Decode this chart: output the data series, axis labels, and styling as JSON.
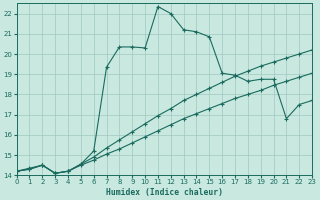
{
  "xlabel": "Humidex (Indice chaleur)",
  "bg_color": "#c8e8e0",
  "grid_color": "#a0c8c0",
  "line_color": "#1a6b5e",
  "xlim": [
    0,
    23
  ],
  "ylim": [
    14,
    22.5
  ],
  "xticks": [
    0,
    1,
    2,
    3,
    4,
    5,
    6,
    7,
    8,
    9,
    10,
    11,
    12,
    13,
    14,
    15,
    16,
    17,
    18,
    19,
    20,
    21,
    22,
    23
  ],
  "yticks": [
    14,
    15,
    16,
    17,
    18,
    19,
    20,
    21,
    22
  ],
  "curve_main_x": [
    0,
    1,
    2,
    3,
    4,
    5,
    6,
    7,
    8,
    9,
    10,
    11,
    12,
    13,
    14,
    15,
    16,
    17,
    18,
    19,
    20,
    21,
    22,
    23
  ],
  "curve_main_y": [
    14.2,
    14.35,
    14.5,
    14.1,
    14.2,
    14.55,
    15.2,
    19.35,
    20.35,
    20.35,
    20.3,
    22.35,
    22.0,
    21.2,
    21.1,
    20.85,
    19.05,
    18.95,
    18.65,
    18.75,
    18.75,
    16.8,
    17.5,
    17.7
  ],
  "curve_upper_x": [
    0,
    1,
    2,
    3,
    4,
    5,
    6,
    7,
    8,
    9,
    10,
    11,
    12,
    13,
    14,
    15,
    16,
    17,
    18,
    19,
    20,
    21,
    22,
    23
  ],
  "curve_upper_y": [
    14.2,
    14.3,
    14.5,
    14.1,
    14.2,
    14.55,
    14.9,
    15.35,
    15.75,
    16.15,
    16.55,
    16.95,
    17.3,
    17.7,
    18.0,
    18.3,
    18.6,
    18.9,
    19.15,
    19.4,
    19.6,
    19.8,
    20.0,
    20.2
  ],
  "curve_lower_x": [
    0,
    1,
    2,
    3,
    4,
    5,
    6,
    7,
    8,
    9,
    10,
    11,
    12,
    13,
    14,
    15,
    16,
    17,
    18,
    19,
    20,
    21,
    22,
    23
  ],
  "curve_lower_y": [
    14.2,
    14.3,
    14.5,
    14.1,
    14.2,
    14.5,
    14.75,
    15.05,
    15.3,
    15.6,
    15.9,
    16.2,
    16.5,
    16.8,
    17.05,
    17.3,
    17.55,
    17.8,
    18.0,
    18.2,
    18.45,
    18.65,
    18.85,
    19.05
  ]
}
